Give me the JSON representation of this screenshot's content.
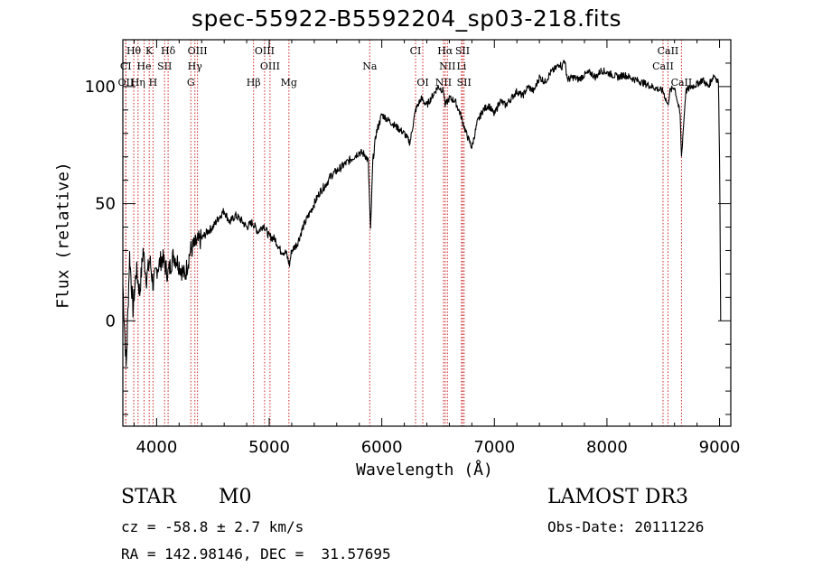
{
  "title": "spec-55922-B5592204_sp03-218.fits",
  "footer": {
    "class_label": "STAR",
    "subclass_label": "M0",
    "survey": "LAMOST DR3",
    "cz": "cz = -58.8 ± 2.7 km/s",
    "obs_date": "Obs-Date: 20111226",
    "coords": "RA = 142.98146, DEC =  31.57695"
  },
  "colors": {
    "line_marker": "#cc2222",
    "spectrum": "#000000",
    "axis": "#000000"
  },
  "chart_data": {
    "type": "line",
    "title": "spec-55922-B5592204_sp03-218.fits",
    "xlabel": "Wavelength (Å)",
    "ylabel": "Flux (relative)",
    "xlim": [
      3700,
      9100
    ],
    "ylim": [
      -45,
      120
    ],
    "xticks": [
      4000,
      5000,
      6000,
      7000,
      8000,
      9000
    ],
    "yticks": [
      0,
      50,
      100
    ],
    "series": [
      {
        "name": "spectrum",
        "x": [
          3700,
          3730,
          3760,
          3790,
          3820,
          3850,
          3880,
          3910,
          3940,
          3970,
          4000,
          4050,
          4100,
          4150,
          4200,
          4250,
          4300,
          4350,
          4400,
          4450,
          4500,
          4550,
          4600,
          4650,
          4700,
          4750,
          4800,
          4850,
          4900,
          4950,
          5000,
          5050,
          5100,
          5150,
          5180,
          5200,
          5250,
          5300,
          5350,
          5400,
          5450,
          5500,
          5550,
          5600,
          5650,
          5700,
          5750,
          5800,
          5850,
          5880,
          5900,
          5920,
          5950,
          6000,
          6050,
          6100,
          6150,
          6200,
          6250,
          6300,
          6350,
          6400,
          6450,
          6500,
          6550,
          6563,
          6600,
          6650,
          6700,
          6750,
          6800,
          6850,
          6900,
          6950,
          7000,
          7050,
          7100,
          7150,
          7200,
          7250,
          7300,
          7350,
          7400,
          7450,
          7500,
          7550,
          7580,
          7600,
          7620,
          7650,
          7700,
          7750,
          7800,
          7850,
          7900,
          7950,
          8000,
          8050,
          8100,
          8150,
          8200,
          8250,
          8300,
          8350,
          8400,
          8450,
          8500,
          8540,
          8560,
          8600,
          8650,
          8662,
          8700,
          8750,
          8800,
          8850,
          8900,
          8950,
          8990,
          9000,
          9010
        ],
        "y": [
          15,
          -20,
          28,
          5,
          22,
          12,
          30,
          18,
          26,
          15,
          22,
          27,
          20,
          28,
          24,
          19,
          30,
          33,
          35,
          38,
          40,
          44,
          47,
          42,
          45,
          43,
          40,
          42,
          38,
          41,
          36,
          35,
          30,
          29,
          24,
          30,
          33,
          40,
          45,
          50,
          55,
          58,
          62,
          64,
          66,
          68,
          70,
          72,
          71,
          68,
          38,
          68,
          80,
          88,
          86,
          84,
          82,
          80,
          76,
          90,
          95,
          92,
          96,
          100,
          98,
          92,
          95,
          94,
          88,
          80,
          74,
          85,
          90,
          92,
          88,
          94,
          92,
          95,
          98,
          96,
          100,
          98,
          104,
          102,
          106,
          108,
          110,
          108,
          112,
          103,
          104,
          103,
          105,
          106,
          104,
          107,
          106,
          105,
          104,
          105,
          104,
          103,
          102,
          101,
          100,
          99,
          98,
          92,
          98,
          100,
          88,
          70,
          98,
          100,
          101,
          103,
          100,
          105,
          102,
          72,
          0
        ]
      }
    ],
    "line_markers": [
      {
        "label": "Hθ",
        "x": 3797,
        "row": 0
      },
      {
        "label": "K",
        "x": 3934,
        "row": 0
      },
      {
        "label": "Hδ",
        "x": 4102,
        "row": 0
      },
      {
        "label": "OIII",
        "x": 4363,
        "row": 0
      },
      {
        "label": "OIII",
        "x": 4959,
        "row": 0
      },
      {
        "label": "CI",
        "x": 6300,
        "row": 0
      },
      {
        "label": "Hα",
        "x": 6563,
        "row": 0
      },
      {
        "label": "SII",
        "x": 6717,
        "row": 0
      },
      {
        "label": "CaII",
        "x": 8542,
        "row": 0
      },
      {
        "label": "CI",
        "x": 3726,
        "row": 1
      },
      {
        "label": "He",
        "x": 3889,
        "row": 1
      },
      {
        "label": "SII",
        "x": 4071,
        "row": 1
      },
      {
        "label": "Hγ",
        "x": 4340,
        "row": 1
      },
      {
        "label": "OIII",
        "x": 5007,
        "row": 1
      },
      {
        "label": "Na",
        "x": 5893,
        "row": 1
      },
      {
        "label": "NII",
        "x": 6583,
        "row": 1
      },
      {
        "label": "Li",
        "x": 6708,
        "row": 1
      },
      {
        "label": "CaII",
        "x": 8498,
        "row": 1
      },
      {
        "label": "OII",
        "x": 3727,
        "row": 2
      },
      {
        "label": "Hη",
        "x": 3835,
        "row": 2
      },
      {
        "label": "H",
        "x": 3968,
        "row": 2
      },
      {
        "label": "G",
        "x": 4304,
        "row": 2
      },
      {
        "label": "Hβ",
        "x": 4861,
        "row": 2
      },
      {
        "label": "Mg",
        "x": 5175,
        "row": 2
      },
      {
        "label": "OI",
        "x": 6364,
        "row": 2
      },
      {
        "label": "NII",
        "x": 6548,
        "row": 2
      },
      {
        "label": "SII",
        "x": 6731,
        "row": 2
      },
      {
        "label": "CaII",
        "x": 8662,
        "row": 2
      }
    ]
  }
}
